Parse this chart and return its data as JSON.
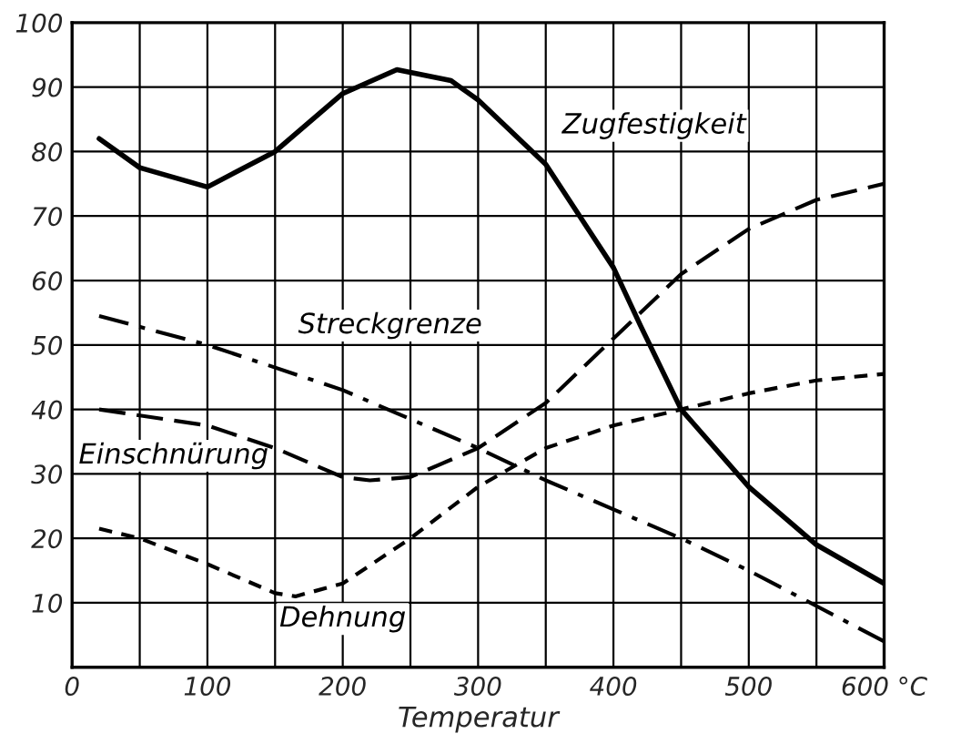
{
  "chart_data": {
    "type": "line",
    "xlabel": "Temperatur",
    "xlim": [
      0,
      600
    ],
    "ylim": [
      0,
      100
    ],
    "xticks": [
      0,
      {
        "value": 50,
        "label": null
      },
      100,
      {
        "value": 150,
        "label": null
      },
      200,
      {
        "value": 250,
        "label": null
      },
      300,
      {
        "value": 350,
        "label": null
      },
      400,
      {
        "value": 450,
        "label": null
      },
      500,
      {
        "value": 550,
        "label": null
      },
      {
        "value": 600,
        "label": "600 °C"
      }
    ],
    "yticks": [
      10,
      20,
      30,
      40,
      50,
      60,
      70,
      80,
      90,
      100
    ],
    "grid": true,
    "legend": false,
    "marker": "none",
    "series": [
      {
        "name": "Zugfestigkeit",
        "color": "#000000",
        "line_style": "solid",
        "x": [
          20,
          50,
          100,
          150,
          200,
          240,
          280,
          300,
          350,
          400,
          420,
          450,
          500,
          550,
          600
        ],
        "values": [
          82,
          77.5,
          74.5,
          80,
          89,
          92.7,
          91,
          88,
          78,
          62,
          53,
          40,
          28,
          19,
          13
        ]
      },
      {
        "name": "Streckgrenze",
        "color": "#000000",
        "line_style": "dashdot",
        "x": [
          20,
          100,
          200,
          250,
          300,
          350,
          400,
          450,
          500,
          550,
          600
        ],
        "values": [
          54.5,
          50,
          43,
          38.5,
          34,
          29,
          24.5,
          20,
          15,
          9.5,
          4
        ]
      },
      {
        "name": "Einschnürung",
        "color": "#000000",
        "line_style": "dashed",
        "x": [
          20,
          100,
          150,
          200,
          220,
          250,
          300,
          350,
          400,
          450,
          500,
          550,
          600
        ],
        "values": [
          40,
          37.5,
          34,
          29.5,
          29,
          29.5,
          34,
          41,
          51,
          61,
          68,
          72.5,
          75
        ]
      },
      {
        "name": "Dehnung",
        "color": "#000000",
        "line_style": "dotted",
        "x": [
          20,
          50,
          100,
          150,
          165,
          200,
          250,
          300,
          350,
          400,
          450,
          500,
          550,
          600
        ],
        "values": [
          21.5,
          20,
          16,
          11.5,
          11,
          13,
          20,
          28,
          34,
          37.5,
          40,
          42.5,
          44.5,
          45.5
        ]
      }
    ]
  }
}
